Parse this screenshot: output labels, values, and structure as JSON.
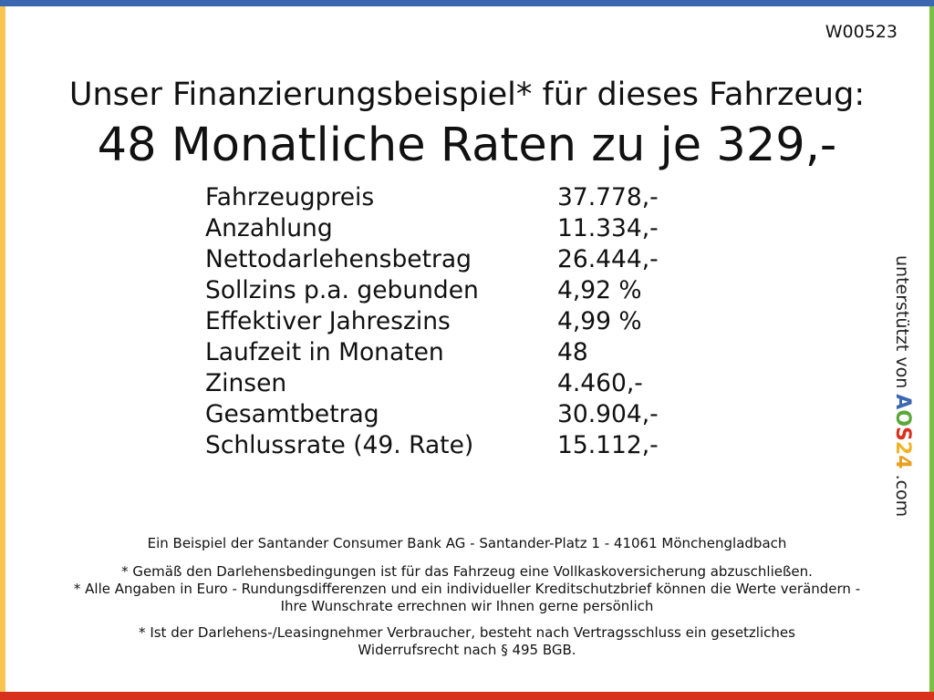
{
  "code": "W00523",
  "title": "Unser Finanzierungsbeispiel* für dieses Fahrzeug:",
  "headline": "48 Monatliche Raten zu je 329,-",
  "rows": [
    {
      "label": "Fahrzeugpreis",
      "value": "37.778,-"
    },
    {
      "label": "Anzahlung",
      "value": "11.334,-"
    },
    {
      "label": "Nettodarlehensbetrag",
      "value": "26.444,-"
    },
    {
      "label": "Sollzins p.a. gebunden",
      "value": "4,92 %"
    },
    {
      "label": "Effektiver Jahreszins",
      "value": "4,99 %"
    },
    {
      "label": "Laufzeit in Monaten",
      "value": "48"
    },
    {
      "label": "Zinsen",
      "value": "4.460,-"
    },
    {
      "label": "Gesamtbetrag",
      "value": "30.904,-"
    },
    {
      "label": "Schlussrate (49. Rate)",
      "value": "15.112,-"
    }
  ],
  "footer": {
    "bank": "Ein Beispiel der Santander Consumer Bank AG - Santander-Platz 1 - 41061 Mönchengladbach",
    "note1": "* Gemäß den Darlehensbedingungen ist für das Fahrzeug eine Vollkaskoversicherung abzuschließen.",
    "note2": "* Alle Angaben in Euro - Rundungsdifferenzen und ein individueller Kreditschutzbrief können die Werte verändern - Ihre Wunschrate errechnen wir Ihnen gerne persönlich",
    "note3": "* Ist der Darlehens-/Leasingnehmer Verbraucher, besteht nach Vertragsschluss ein gesetzliches Widerrufsrecht nach § 495 BGB."
  },
  "side": {
    "text": "unterstützt von",
    "logo": [
      "A",
      "O",
      "S",
      "2",
      "4"
    ],
    "suffix": ".com"
  },
  "colors": {
    "top": "#3b66b0",
    "left": "#f8c552",
    "right": "#7cc043",
    "bottom": "#d8321f",
    "logo": [
      "#3b66b0",
      "#5aa83a",
      "#d8321f",
      "#f0b429",
      "#e8a020"
    ]
  }
}
